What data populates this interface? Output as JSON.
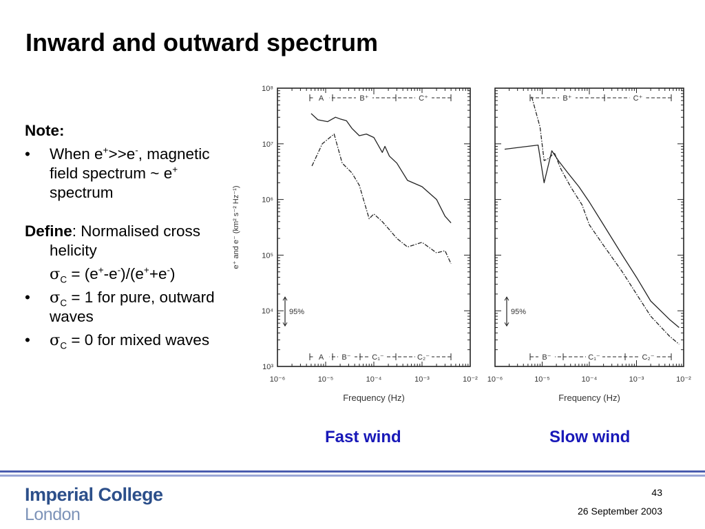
{
  "slide": {
    "title": "Inward and outward spectrum",
    "page_number": "43",
    "date": "26 September 2003",
    "logo_line1": "Imperial College",
    "logo_line2": "London"
  },
  "notes": {
    "heading": "Note:",
    "bullet1": {
      "part1": "When e",
      "sup1": "+",
      "part2": ">>e",
      "sup2": "-",
      "part3": ", magnetic field spectrum ~ e",
      "sup3": "+",
      "part4": " spectrum"
    },
    "define": {
      "bold": "Define",
      "text": ": Normalised cross helicity"
    },
    "formula": {
      "sigma": "σ",
      "sub": "C",
      "eq": " = (e",
      "s1": "+",
      "m1": "-e",
      "s2": "-",
      "m2": ")/(e",
      "s3": "+",
      "m3": "+e",
      "s4": "-",
      "m4": ")"
    },
    "bullet2": {
      "sigma": "σ",
      "sub": "C",
      "text": " = 1 for pure, outward waves"
    },
    "bullet3": {
      "sigma": "σ",
      "sub": "C",
      "text": " = 0 for mixed waves"
    }
  },
  "figures": {
    "fast_caption": "Fast wind",
    "slow_caption": "Slow wind"
  },
  "chart_data": [
    {
      "type": "line",
      "xlabel": "Frequency (Hz)",
      "ylabel": "e⁺ and e⁻ (km² s⁻² Hz⁻¹)",
      "x_log": true,
      "y_log": true,
      "xlim": [
        1e-06,
        0.01
      ],
      "ylim": [
        1000.0,
        100000000.0
      ],
      "x_ticks": [
        "10⁻⁶",
        "10⁻⁵",
        "10⁻⁴",
        "10⁻³",
        "10⁻²"
      ],
      "y_ticks": [
        "10³",
        "10⁴",
        "10⁵",
        "10⁶",
        "10⁷",
        "10⁸"
      ],
      "top_ranges": [
        "A",
        "B⁺",
        "C⁺"
      ],
      "bottom_ranges": [
        "A",
        "B⁻",
        "C₁⁻",
        "C₂⁻"
      ],
      "confidence_label": "95%",
      "series": [
        {
          "style": "solid",
          "x": [
            5e-06,
            6.9e-06,
            1.1e-05,
            1.6e-05,
            2e-05,
            2.7e-05,
            3.5e-05,
            5e-05,
            7e-05,
            0.0001,
            0.00015,
            0.00017,
            0.00021,
            0.0003,
            0.0005,
            0.001,
            0.002,
            0.003,
            0.004
          ],
          "y": [
            35000000,
            27000000,
            25000000,
            30000000,
            28000000,
            26000000,
            19000000,
            14000000,
            15000000,
            13000000,
            7000000,
            9000000,
            6000000,
            4500000,
            2200000,
            1700000,
            1000000,
            500000,
            380000
          ]
        },
        {
          "style": "dash-dot",
          "x": [
            5.2e-06,
            8.5e-06,
            1.5e-05,
            2.2e-05,
            3.5e-05,
            5e-05,
            8e-05,
            0.0001,
            0.00015,
            0.0002,
            0.0003,
            0.0005,
            0.001,
            0.002,
            0.003,
            0.004
          ],
          "y": [
            4000000,
            10000000,
            15000000,
            4500000,
            3000000,
            1800000,
            450000,
            550000,
            400000,
            300000,
            200000,
            140000,
            170000,
            110000,
            120000,
            70000
          ]
        }
      ]
    },
    {
      "type": "line",
      "xlabel": "Frequency (Hz)",
      "x_log": true,
      "y_log": true,
      "xlim": [
        1e-06,
        0.01
      ],
      "ylim": [
        1000.0,
        100000000.0
      ],
      "x_ticks": [
        "10⁻⁶",
        "10⁻⁵",
        "10⁻⁴",
        "10⁻³",
        "10⁻²"
      ],
      "top_ranges": [
        "B⁺",
        "C⁺"
      ],
      "bottom_ranges": [
        "B⁻",
        "C₁⁻",
        "C₂⁻"
      ],
      "confidence_label": "95%",
      "series": [
        {
          "style": "solid",
          "x": [
            1.6e-06,
            4.9e-06,
            8.2e-06,
            1.1e-05,
            1.6e-05,
            2.2e-05,
            3.5e-05,
            6e-05,
            0.0001,
            0.0002,
            0.0005,
            0.001,
            0.002,
            0.005,
            0.008
          ],
          "y": [
            8000000,
            9000000,
            9500000,
            2000000,
            7500000,
            5000000,
            3000000,
            1700000,
            900000,
            350000,
            100000,
            40000,
            15000,
            7000,
            5000
          ]
        },
        {
          "style": "dash-dot",
          "x": [
            6e-06,
            9e-06,
            1.1e-05,
            1.4e-05,
            1.8e-05,
            2.5e-05,
            4e-05,
            7e-05,
            0.0001,
            0.0002,
            0.0005,
            0.001,
            0.002,
            0.005,
            0.008
          ],
          "y": [
            70000000,
            20000000,
            5000000,
            5500000,
            7000000,
            3500000,
            1700000,
            800000,
            350000,
            150000,
            50000,
            20000,
            8000,
            3500,
            2500
          ]
        }
      ]
    }
  ]
}
